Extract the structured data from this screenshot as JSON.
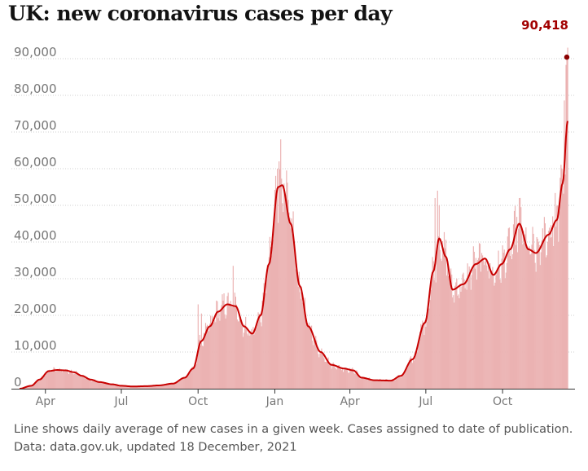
{
  "chart_data": {
    "type": "bar+line",
    "title": "UK: new coronavirus cases per day",
    "xlabel": "",
    "ylabel": "",
    "ylim": [
      0,
      90000
    ],
    "yticks": [
      0,
      10000,
      20000,
      30000,
      40000,
      50000,
      60000,
      70000,
      80000,
      90000
    ],
    "ytick_labels": [
      "0",
      "10,000",
      "20,000",
      "30,000",
      "40,000",
      "50,000",
      "60,000",
      "70,000",
      "80,000",
      "90,000"
    ],
    "xticks": [
      "Apr",
      "Jul",
      "Oct",
      "Jan",
      "Apr",
      "Jul",
      "Oct"
    ],
    "xtick_dates": [
      "2020-04-01",
      "2020-07-01",
      "2020-10-01",
      "2021-01-01",
      "2021-04-01",
      "2021-07-01",
      "2021-10-01"
    ],
    "x_range": [
      "2020-03-01",
      "2021-12-18"
    ],
    "grid": "horizontal dotted",
    "annotation": {
      "label": "90,418",
      "date": "2021-12-17",
      "value": 90418
    },
    "series": [
      {
        "name": "Line shows daily average of new cases in a given week",
        "kind": "line",
        "points": [
          [
            "2020-03-01",
            0
          ],
          [
            "2020-03-15",
            800
          ],
          [
            "2020-03-25",
            2500
          ],
          [
            "2020-04-05",
            4800
          ],
          [
            "2020-04-15",
            5100
          ],
          [
            "2020-04-25",
            5000
          ],
          [
            "2020-05-05",
            4500
          ],
          [
            "2020-05-15",
            3500
          ],
          [
            "2020-05-25",
            2500
          ],
          [
            "2020-06-05",
            1800
          ],
          [
            "2020-06-20",
            1200
          ],
          [
            "2020-07-01",
            800
          ],
          [
            "2020-07-15",
            600
          ],
          [
            "2020-08-01",
            700
          ],
          [
            "2020-08-15",
            900
          ],
          [
            "2020-09-01",
            1400
          ],
          [
            "2020-09-15",
            3000
          ],
          [
            "2020-09-25",
            5500
          ],
          [
            "2020-10-05",
            13000
          ],
          [
            "2020-10-15",
            17000
          ],
          [
            "2020-10-25",
            21000
          ],
          [
            "2020-11-05",
            23000
          ],
          [
            "2020-11-15",
            22500
          ],
          [
            "2020-11-25",
            17000
          ],
          [
            "2020-12-05",
            15000
          ],
          [
            "2020-12-15",
            20000
          ],
          [
            "2020-12-25",
            34000
          ],
          [
            "2021-01-05",
            55000
          ],
          [
            "2021-01-10",
            55500
          ],
          [
            "2021-01-20",
            45000
          ],
          [
            "2021-01-31",
            28000
          ],
          [
            "2021-02-10",
            17000
          ],
          [
            "2021-02-25",
            10000
          ],
          [
            "2021-03-10",
            6500
          ],
          [
            "2021-03-25",
            5500
          ],
          [
            "2021-04-05",
            5000
          ],
          [
            "2021-04-15",
            3000
          ],
          [
            "2021-05-01",
            2300
          ],
          [
            "2021-05-20",
            2200
          ],
          [
            "2021-06-01",
            3500
          ],
          [
            "2021-06-15",
            8000
          ],
          [
            "2021-06-30",
            18000
          ],
          [
            "2021-07-10",
            32000
          ],
          [
            "2021-07-17",
            41000
          ],
          [
            "2021-07-25",
            36000
          ],
          [
            "2021-08-02",
            27000
          ],
          [
            "2021-08-15",
            28500
          ],
          [
            "2021-08-30",
            34000
          ],
          [
            "2021-09-10",
            35500
          ],
          [
            "2021-09-20",
            31000
          ],
          [
            "2021-09-30",
            34000
          ],
          [
            "2021-10-10",
            38000
          ],
          [
            "2021-10-21",
            45000
          ],
          [
            "2021-11-01",
            38000
          ],
          [
            "2021-11-10",
            37000
          ],
          [
            "2021-11-25",
            42000
          ],
          [
            "2021-12-05",
            46000
          ],
          [
            "2021-12-12",
            56000
          ],
          [
            "2021-12-18",
            73000
          ]
        ]
      },
      {
        "name": "Cases assigned to date of publication",
        "kind": "bars",
        "noise": 0.12,
        "spikes": [
          [
            "2020-10-01",
            23000
          ],
          [
            "2020-10-05",
            20500
          ],
          [
            "2020-11-12",
            33500
          ],
          [
            "2020-11-01",
            26000
          ],
          [
            "2021-01-06",
            62000
          ],
          [
            "2021-01-08",
            68000
          ],
          [
            "2021-01-04",
            60000
          ],
          [
            "2021-07-12",
            52000
          ],
          [
            "2021-07-15",
            54000
          ],
          [
            "2021-07-17",
            50000
          ],
          [
            "2021-10-21",
            52000
          ],
          [
            "2021-10-23",
            49500
          ],
          [
            "2021-11-30",
            47000
          ],
          [
            "2021-12-06",
            50000
          ],
          [
            "2021-12-11",
            60000
          ],
          [
            "2021-12-14",
            78600
          ],
          [
            "2021-12-16",
            88300
          ],
          [
            "2021-12-17",
            90418
          ],
          [
            "2021-12-18",
            93000
          ]
        ]
      }
    ]
  },
  "footer": {
    "note": "Line shows daily average of new cases in a given week. Cases assigned to date of publication.",
    "source": "Data: data.gov.uk, updated 18 December, 2021"
  }
}
